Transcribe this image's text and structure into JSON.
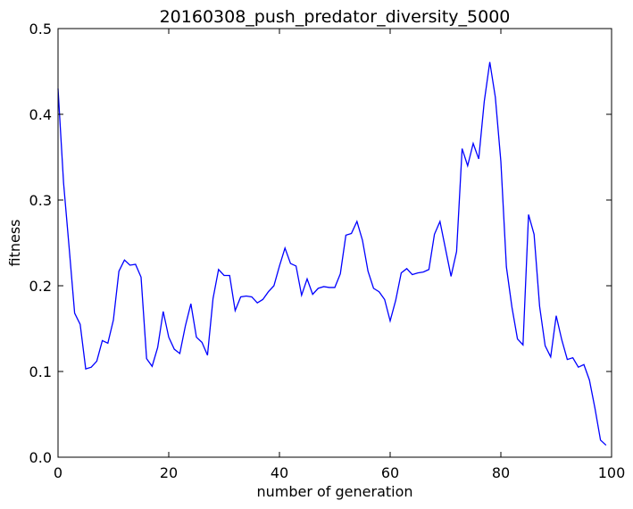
{
  "chart_data": {
    "type": "line",
    "title": "20160308_push_predator_diversity_5000",
    "xlabel": "number of generation",
    "ylabel": "fitness",
    "xlim": [
      0,
      100
    ],
    "ylim": [
      0,
      0.5
    ],
    "xticks": [
      0,
      20,
      40,
      60,
      80,
      100
    ],
    "yticks": [
      0.0,
      0.1,
      0.2,
      0.3,
      0.4,
      0.5
    ],
    "xtick_labels": [
      "0",
      "20",
      "40",
      "60",
      "80",
      "100"
    ],
    "ytick_labels": [
      "0.0",
      "0.1",
      "0.2",
      "0.3",
      "0.4",
      "0.5"
    ],
    "grid": false,
    "line_color": "#0000ff",
    "series": [
      {
        "x": [
          0,
          1,
          2,
          3,
          4,
          5,
          6,
          7,
          8,
          9,
          10,
          11,
          12,
          13,
          14,
          15,
          16,
          17,
          18,
          19,
          20,
          21,
          22,
          23,
          24,
          25,
          26,
          27,
          28,
          29,
          30,
          31,
          32,
          33,
          34,
          35,
          36,
          37,
          38,
          39,
          40,
          41,
          42,
          43,
          44,
          45,
          46,
          47,
          48,
          49,
          50,
          51,
          52,
          53,
          54,
          55,
          56,
          57,
          58,
          59,
          60,
          61,
          62,
          63,
          64,
          65,
          66,
          67,
          68,
          69,
          70,
          71,
          72,
          73,
          74,
          75,
          76,
          77,
          78,
          79,
          80,
          81,
          82,
          83,
          84,
          85,
          86,
          87,
          88,
          89,
          90,
          91,
          92,
          93,
          94,
          95,
          96,
          97,
          98,
          99
        ],
        "values": [
          0.43,
          0.32,
          0.245,
          0.168,
          0.155,
          0.103,
          0.105,
          0.112,
          0.136,
          0.133,
          0.16,
          0.217,
          0.23,
          0.224,
          0.225,
          0.21,
          0.115,
          0.106,
          0.128,
          0.17,
          0.14,
          0.126,
          0.121,
          0.153,
          0.179,
          0.14,
          0.134,
          0.119,
          0.185,
          0.219,
          0.212,
          0.212,
          0.171,
          0.187,
          0.188,
          0.187,
          0.18,
          0.184,
          0.193,
          0.2,
          0.223,
          0.244,
          0.226,
          0.223,
          0.189,
          0.208,
          0.19,
          0.197,
          0.199,
          0.198,
          0.198,
          0.214,
          0.259,
          0.261,
          0.275,
          0.253,
          0.217,
          0.197,
          0.193,
          0.184,
          0.159,
          0.183,
          0.215,
          0.22,
          0.213,
          0.215,
          0.216,
          0.219,
          0.26,
          0.275,
          0.243,
          0.211,
          0.24,
          0.36,
          0.34,
          0.366,
          0.348,
          0.415,
          0.461,
          0.42,
          0.345,
          0.222,
          0.175,
          0.138,
          0.131,
          0.283,
          0.26,
          0.176,
          0.13,
          0.117,
          0.165,
          0.137,
          0.114,
          0.116,
          0.105,
          0.108,
          0.09,
          0.057,
          0.02,
          0.014
        ]
      }
    ]
  }
}
